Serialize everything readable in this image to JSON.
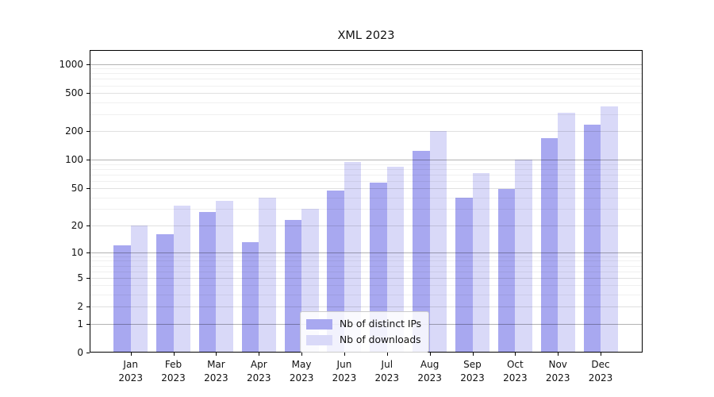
{
  "chart_data": {
    "type": "bar",
    "title": "XML 2023",
    "categories": [
      "Jan 2023",
      "Feb 2023",
      "Mar 2023",
      "Apr 2023",
      "May 2023",
      "Jun 2023",
      "Jul 2023",
      "Aug 2023",
      "Sep 2023",
      "Oct 2023",
      "Nov 2023",
      "Dec 2023"
    ],
    "series": [
      {
        "name": "Nb of distinct IPs",
        "color": "#a8a8f0",
        "values": [
          12,
          16,
          28,
          13,
          23,
          47,
          57,
          125,
          40,
          49,
          170,
          233
        ]
      },
      {
        "name": "Nb of downloads",
        "color": "#d9d9f8",
        "values": [
          20,
          33,
          37,
          40,
          30,
          95,
          85,
          200,
          73,
          100,
          310,
          360
        ]
      }
    ],
    "xlabel": "",
    "ylabel": "",
    "yscale": "log1p",
    "ylim": [
      0,
      1400
    ],
    "ytick_labels": [
      "0",
      "1",
      "2",
      "5",
      "10",
      "20",
      "50",
      "100",
      "200",
      "500",
      "1000"
    ],
    "ytick_values": [
      0,
      1,
      2,
      5,
      10,
      20,
      50,
      100,
      200,
      500,
      1000
    ],
    "grid": true,
    "gridlines": {
      "major_values": [
        1,
        10,
        100,
        1000
      ],
      "labeled_values": [
        2,
        5,
        20,
        50,
        200,
        500
      ],
      "minor_values": [
        3,
        4,
        6,
        7,
        8,
        9,
        30,
        40,
        60,
        70,
        80,
        90,
        300,
        400,
        600,
        700,
        800,
        900
      ],
      "major_color": "rgba(0,0,0,0.30)",
      "labeled_color": "rgba(0,0,0,0.12)",
      "minor_color": "rgba(0,0,0,0.06)"
    },
    "legend_position": "lower center",
    "colors": {
      "background": "#ffffff",
      "axis": "#000000",
      "text": "#111111"
    }
  }
}
